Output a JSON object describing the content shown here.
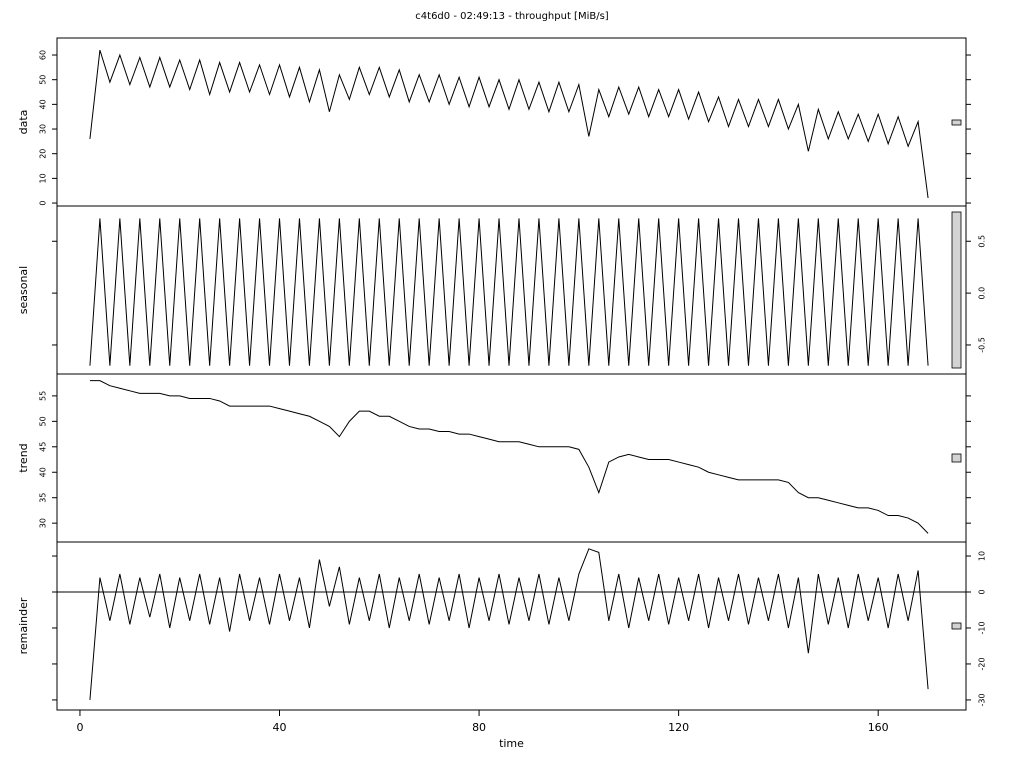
{
  "chart_data": [
    {
      "type": "line",
      "title": "c4t6d0 - 02:49:13 - throughput [MiB/s]",
      "ylabel": "data",
      "ytick_side": "left",
      "x": [
        2,
        4,
        6,
        8,
        10,
        12,
        14,
        16,
        18,
        20,
        22,
        24,
        26,
        28,
        30,
        32,
        34,
        36,
        38,
        40,
        42,
        44,
        46,
        48,
        50,
        52,
        54,
        56,
        58,
        60,
        62,
        64,
        66,
        68,
        70,
        72,
        74,
        76,
        78,
        80,
        82,
        84,
        86,
        88,
        90,
        92,
        94,
        96,
        98,
        100,
        102,
        104,
        106,
        108,
        110,
        112,
        114,
        116,
        118,
        120,
        122,
        124,
        126,
        128,
        130,
        132,
        134,
        136,
        138,
        140,
        142,
        144,
        146,
        148,
        150,
        152,
        154,
        156,
        158,
        160,
        162,
        164,
        166,
        168,
        170
      ],
      "values": [
        26,
        62,
        49,
        60,
        48,
        59,
        47,
        59,
        47,
        58,
        46,
        58,
        44,
        57,
        45,
        57,
        45,
        56,
        44,
        56,
        43,
        55,
        41,
        54,
        37,
        52,
        42,
        55,
        44,
        55,
        43,
        54,
        41,
        52,
        41,
        52,
        40,
        51,
        39,
        51,
        39,
        50,
        38,
        50,
        38,
        49,
        37,
        49,
        37,
        48,
        27,
        46,
        35,
        47,
        36,
        47,
        35,
        46,
        35,
        46,
        34,
        45,
        33,
        43,
        31,
        42,
        31,
        42,
        31,
        42,
        30,
        40,
        21,
        38,
        26,
        37,
        26,
        36,
        25,
        36,
        24,
        35,
        23,
        33,
        2
      ],
      "xlim": [
        -4.6,
        177.6
      ],
      "ylim": [
        -1.2,
        66.9
      ],
      "yticks": [
        0,
        10,
        20,
        30,
        40,
        50,
        60
      ]
    },
    {
      "type": "line",
      "ylabel": "seasonal",
      "ytick_side": "right",
      "x": [
        2,
        4,
        6,
        8,
        10,
        12,
        14,
        16,
        18,
        20,
        22,
        24,
        26,
        28,
        30,
        32,
        34,
        36,
        38,
        40,
        42,
        44,
        46,
        48,
        50,
        52,
        54,
        56,
        58,
        60,
        62,
        64,
        66,
        68,
        70,
        72,
        74,
        76,
        78,
        80,
        82,
        84,
        86,
        88,
        90,
        92,
        94,
        96,
        98,
        100,
        102,
        104,
        106,
        108,
        110,
        112,
        114,
        116,
        118,
        120,
        122,
        124,
        126,
        128,
        130,
        132,
        134,
        136,
        138,
        140,
        142,
        144,
        146,
        148,
        150,
        152,
        154,
        156,
        158,
        160,
        162,
        164,
        166,
        168,
        170
      ],
      "values": [
        -0.7,
        0.72,
        -0.7,
        0.72,
        -0.7,
        0.72,
        -0.7,
        0.72,
        -0.7,
        0.72,
        -0.7,
        0.72,
        -0.7,
        0.72,
        -0.7,
        0.72,
        -0.7,
        0.72,
        -0.7,
        0.72,
        -0.7,
        0.72,
        -0.7,
        0.72,
        -0.7,
        0.72,
        -0.7,
        0.72,
        -0.7,
        0.72,
        -0.7,
        0.72,
        -0.7,
        0.72,
        -0.7,
        0.72,
        -0.7,
        0.72,
        -0.7,
        0.72,
        -0.7,
        0.72,
        -0.7,
        0.72,
        -0.7,
        0.72,
        -0.7,
        0.72,
        -0.7,
        0.72,
        -0.7,
        0.72,
        -0.7,
        0.72,
        -0.7,
        0.72,
        -0.7,
        0.72,
        -0.7,
        0.72,
        -0.7,
        0.72,
        -0.7,
        0.72,
        -0.7,
        0.72,
        -0.7,
        0.72,
        -0.7,
        0.72,
        -0.7,
        0.72,
        -0.7,
        0.72,
        -0.7,
        0.72,
        -0.7,
        0.72,
        -0.7,
        0.72,
        -0.7,
        0.72,
        -0.7,
        0.72,
        -0.7
      ],
      "xlim": [
        -4.6,
        177.6
      ],
      "ylim": [
        -0.78,
        0.84
      ],
      "yticks": [
        -0.5,
        {
          "value": 0,
          "label": "0.0"
        },
        0.5
      ]
    },
    {
      "type": "line",
      "ylabel": "trend",
      "ytick_side": "left",
      "x": [
        2,
        4,
        6,
        8,
        10,
        12,
        14,
        16,
        18,
        20,
        22,
        24,
        26,
        28,
        30,
        32,
        34,
        36,
        38,
        40,
        42,
        44,
        46,
        48,
        50,
        52,
        54,
        56,
        58,
        60,
        62,
        64,
        66,
        68,
        70,
        72,
        74,
        76,
        78,
        80,
        82,
        84,
        86,
        88,
        90,
        92,
        94,
        96,
        98,
        100,
        102,
        104,
        106,
        108,
        110,
        112,
        114,
        116,
        118,
        120,
        122,
        124,
        126,
        128,
        130,
        132,
        134,
        136,
        138,
        140,
        142,
        144,
        146,
        148,
        150,
        152,
        154,
        156,
        158,
        160,
        162,
        164,
        166,
        168,
        170
      ],
      "values": [
        58,
        58,
        57,
        56.5,
        56,
        55.5,
        55.5,
        55.5,
        55,
        55,
        54.5,
        54.5,
        54.5,
        54,
        53,
        53,
        53,
        53,
        53,
        52.5,
        52,
        51.5,
        51,
        50,
        49,
        47,
        50,
        52,
        52,
        51,
        51,
        50,
        49,
        48.5,
        48.5,
        48,
        48,
        47.5,
        47.5,
        47,
        46.5,
        46,
        46,
        46,
        45.5,
        45,
        45,
        45,
        45,
        44.5,
        41,
        36,
        42,
        43,
        43.5,
        43,
        42.5,
        42.5,
        42.5,
        42,
        41.5,
        41,
        40,
        39.5,
        39,
        38.5,
        38.5,
        38.5,
        38.5,
        38.5,
        38,
        36,
        35,
        35,
        34.5,
        34,
        33.5,
        33,
        33,
        32.5,
        31.5,
        31.5,
        31,
        30,
        28
      ],
      "xlim": [
        -4.6,
        177.6
      ],
      "ylim": [
        26.3,
        59.3
      ],
      "yticks": [
        30,
        35,
        40,
        45,
        50,
        55
      ]
    },
    {
      "type": "line",
      "ylabel": "remainder",
      "ytick_side": "right",
      "hline": 0,
      "xlabel": "time",
      "x": [
        2,
        4,
        6,
        8,
        10,
        12,
        14,
        16,
        18,
        20,
        22,
        24,
        26,
        28,
        30,
        32,
        34,
        36,
        38,
        40,
        42,
        44,
        46,
        48,
        50,
        52,
        54,
        56,
        58,
        60,
        62,
        64,
        66,
        68,
        70,
        72,
        74,
        76,
        78,
        80,
        82,
        84,
        86,
        88,
        90,
        92,
        94,
        96,
        98,
        100,
        102,
        104,
        106,
        108,
        110,
        112,
        114,
        116,
        118,
        120,
        122,
        124,
        126,
        128,
        130,
        132,
        134,
        136,
        138,
        140,
        142,
        144,
        146,
        148,
        150,
        152,
        154,
        156,
        158,
        160,
        162,
        164,
        166,
        168,
        170
      ],
      "values": [
        -30,
        4,
        -8,
        5,
        -9,
        4,
        -7,
        5,
        -10,
        4,
        -8,
        5,
        -9,
        4,
        -11,
        5,
        -8,
        4,
        -9,
        5,
        -8,
        4,
        -10,
        9,
        -4,
        7,
        -9,
        4,
        -8,
        5,
        -10,
        4,
        -8,
        5,
        -9,
        4,
        -8,
        5,
        -10,
        4,
        -8,
        5,
        -9,
        4,
        -8,
        5,
        -9,
        4,
        -8,
        5,
        12,
        11,
        -8,
        5,
        -10,
        4,
        -8,
        5,
        -9,
        4,
        -8,
        5,
        -10,
        4,
        -8,
        5,
        -9,
        4,
        -8,
        5,
        -10,
        4,
        -17,
        5,
        -9,
        4,
        -10,
        5,
        -8,
        4,
        -10,
        5,
        -8,
        6,
        -27
      ],
      "xlim": [
        -4.6,
        177.6
      ],
      "ylim": [
        -32.8,
        13.9
      ],
      "yticks": [
        -30,
        -20,
        -10,
        0,
        10
      ],
      "xticks": [
        0,
        40,
        80,
        120,
        160
      ]
    }
  ]
}
